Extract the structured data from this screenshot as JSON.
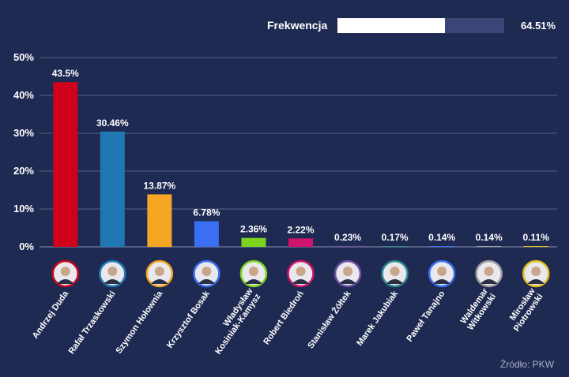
{
  "turnout": {
    "label": "Frekwencja",
    "value_text": "64.51%",
    "value": 64.51
  },
  "source": "Źródło: PKW",
  "colors": {
    "background": "#1f2a52",
    "grid": "#5a6388",
    "turnout_track": "#3b4676"
  },
  "chart_data": {
    "type": "bar",
    "ylim": [
      0,
      50
    ],
    "yticks": [
      0,
      10,
      20,
      30,
      40,
      50
    ],
    "ytick_labels": [
      "0%",
      "10%",
      "20%",
      "30%",
      "40%",
      "50%"
    ],
    "grid": true,
    "categories": [
      "Andrzej Duda",
      "Rafał Trzaskowski",
      "Szymon Hołownia",
      "Krzysztof Bosak",
      "Władysław Kosiniak-Kamysz",
      "Robert Biedroń",
      "Stanisław Żółtek",
      "Marek Jakubiak",
      "Paweł Tanajno",
      "Waldemar Witkowski",
      "Mirosław Piotrowski"
    ],
    "category_lines": [
      [
        "Andrzej Duda"
      ],
      [
        "Rafał Trzaskowski"
      ],
      [
        "Szymon Hołownia"
      ],
      [
        "Krzysztof Bosak"
      ],
      [
        "Władysław",
        "Kosiniak-Kamysz"
      ],
      [
        "Robert Biedroń"
      ],
      [
        "Stanisław Żółtek"
      ],
      [
        "Marek Jakubiak"
      ],
      [
        "Paweł Tanajno"
      ],
      [
        "Waldemar",
        "Witkowski"
      ],
      [
        "Mirosław",
        "Piotrowski"
      ]
    ],
    "values": [
      43.5,
      30.46,
      13.87,
      6.78,
      2.36,
      2.22,
      0.23,
      0.17,
      0.14,
      0.14,
      0.11
    ],
    "value_labels": [
      "43.5%",
      "30.46%",
      "13.87%",
      "6.78%",
      "2.36%",
      "2.22%",
      "0.23%",
      "0.17%",
      "0.14%",
      "0.14%",
      "0.11%"
    ],
    "colors": [
      "#d0021b",
      "#1f78b4",
      "#f5a623",
      "#3b6ff2",
      "#7ed321",
      "#d0146e",
      "#6b4fa0",
      "#2a8a8a",
      "#3b6ff2",
      "#9e9e9e",
      "#e0c020"
    ]
  }
}
